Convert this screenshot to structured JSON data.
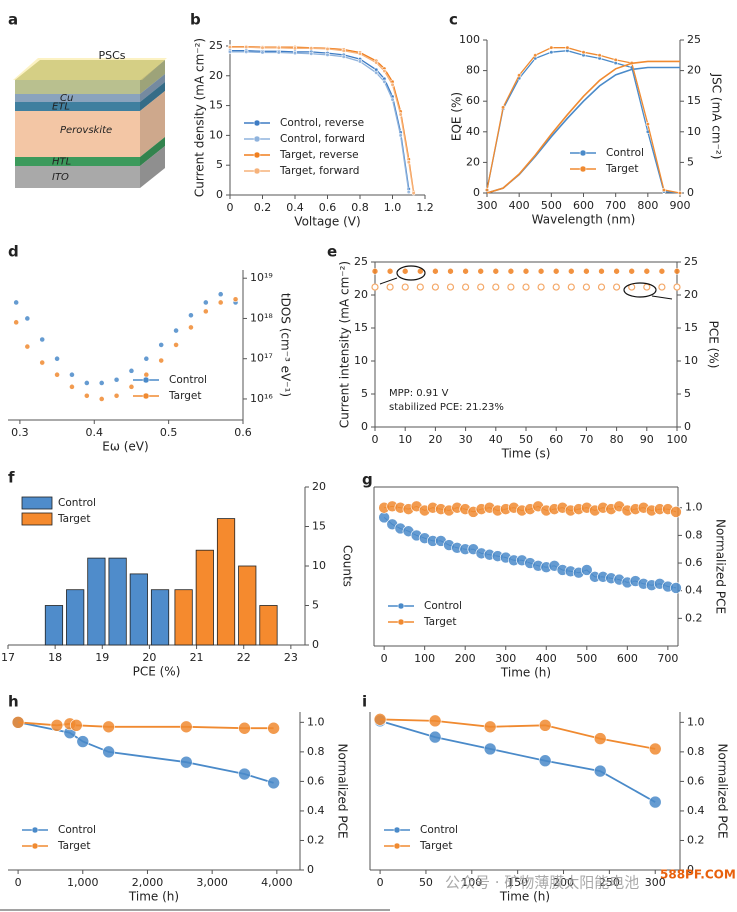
{
  "chart_data": [
    {
      "type": "diagram",
      "panel": "a",
      "title": "PSCs",
      "top_color": "#b9c08f",
      "layers": [
        {
          "label": "Cu",
          "color": "#8aa3bd"
        },
        {
          "label": "ETL",
          "color": "#3f7f9f"
        },
        {
          "label": "Perovskite",
          "color": "#f3c6a5"
        },
        {
          "label": "HTL",
          "color": "#3c9a5c"
        },
        {
          "label": "ITO",
          "color": "#a9a9a9"
        }
      ]
    },
    {
      "type": "line",
      "panel": "b",
      "xlabel": "Voltage (V)",
      "ylabel": "Current density (mA cm⁻²)",
      "legend": "lower left",
      "y_axis_side": "left",
      "x": [
        0,
        0.1,
        0.2,
        0.3,
        0.4,
        0.5,
        0.6,
        0.7,
        0.8,
        0.9,
        0.95,
        1.0,
        1.05,
        1.1,
        1.13
      ],
      "xlim": [
        0,
        1.2
      ],
      "xticks": [
        0,
        0.2,
        0.4,
        0.6,
        0.8,
        {
          "value": 1,
          "label": "1.0"
        },
        1.2
      ],
      "ylim": [
        0,
        26
      ],
      "yticks": [
        0,
        5,
        10,
        15,
        20,
        25
      ],
      "series": [
        {
          "name": "Control, reverse",
          "color": "#3e7cc4",
          "values": [
            24.2,
            24.2,
            24.1,
            24.1,
            24.0,
            24.0,
            23.8,
            23.5,
            22.8,
            21.0,
            19.5,
            16.5,
            10.5,
            1.0,
            null
          ]
        },
        {
          "name": "Control, forward",
          "color": "#8fb3dd",
          "values": [
            24.0,
            24.0,
            23.9,
            23.9,
            23.8,
            23.7,
            23.5,
            23.2,
            22.4,
            20.5,
            19.0,
            16.0,
            10.0,
            0.5,
            null
          ]
        },
        {
          "name": "Target, reverse",
          "color": "#f07f1f",
          "values": [
            24.9,
            24.9,
            24.8,
            24.8,
            24.8,
            24.7,
            24.6,
            24.4,
            23.9,
            22.5,
            21.2,
            19.0,
            14.0,
            6.0,
            0.5
          ]
        },
        {
          "name": "Target, forward",
          "color": "#f6b27a",
          "values": [
            24.8,
            24.8,
            24.7,
            24.7,
            24.6,
            24.6,
            24.5,
            24.2,
            23.7,
            22.2,
            20.8,
            18.5,
            13.5,
            5.5,
            0.3
          ]
        }
      ]
    },
    {
      "type": "line",
      "panel": "c",
      "xlabel": "Wavelength (nm)",
      "ylabel": "EQE (%)",
      "y2label": "JSC (mA cm⁻²)",
      "legend": "lower right",
      "y_axis_side": "left",
      "x": [
        300,
        350,
        400,
        450,
        500,
        550,
        600,
        650,
        700,
        750,
        800,
        850,
        900
      ],
      "xlim": [
        300,
        900
      ],
      "xticks": [
        300,
        400,
        500,
        600,
        700,
        800,
        900
      ],
      "ylim": [
        0,
        100
      ],
      "yticks": [
        0,
        20,
        40,
        60,
        80,
        100
      ],
      "y2lim": [
        0,
        25
      ],
      "y2ticks": [
        0,
        5,
        10,
        15,
        20,
        25
      ],
      "series": [
        {
          "name": "Control",
          "color": "#4a8ac9",
          "values": [
            2,
            55,
            75,
            88,
            92,
            93,
            90,
            88,
            85,
            82,
            40,
            1,
            0
          ],
          "y2_values": [
            0,
            0.8,
            3,
            6,
            9.2,
            12.2,
            15,
            17.5,
            19.3,
            20.2,
            20.5,
            20.5,
            20.5
          ]
        },
        {
          "name": "Target",
          "color": "#f08a30",
          "values": [
            2,
            56,
            77,
            90,
            95,
            95,
            92,
            90,
            87,
            85,
            45,
            2,
            0
          ],
          "y2_values": [
            0,
            0.8,
            3.1,
            6.2,
            9.6,
            12.8,
            15.8,
            18.4,
            20.3,
            21.2,
            21.5,
            21.5,
            21.5
          ]
        }
      ]
    },
    {
      "type": "scatter",
      "panel": "d",
      "xlabel": "Eω (eV)",
      "ylabel": "tDOS (cm⁻³ eV⁻¹)",
      "legend": "lower right",
      "y_axis_side": "right",
      "ylog": true,
      "x": [
        0.295,
        0.31,
        0.33,
        0.35,
        0.37,
        0.39,
        0.41,
        0.43,
        0.45,
        0.47,
        0.49,
        0.51,
        0.53,
        0.55,
        0.57,
        0.59
      ],
      "xlim": [
        0.284,
        0.6
      ],
      "xticks": [
        0.3,
        0.4,
        0.5,
        0.6
      ],
      "ylim": [
        3000000000000000.0,
        1.6e+19
      ],
      "yticks": [
        {
          "value": 1e+16,
          "label": "10¹⁶"
        },
        {
          "value": 1e+17,
          "label": "10¹⁷"
        },
        {
          "value": 1e+18,
          "label": "10¹⁸"
        },
        {
          "value": 1e+19,
          "label": "10¹⁹"
        }
      ],
      "series": [
        {
          "name": "Control",
          "color": "#4a8ac9",
          "values": [
            2.5e+18,
            1e+18,
            3e+17,
            1e+17,
            4e+16,
            2.5e+16,
            2.5e+16,
            3e+16,
            5e+16,
            1e+17,
            2.2e+17,
            5e+17,
            1.2e+18,
            2.5e+18,
            4e+18,
            2.5e+18
          ]
        },
        {
          "name": "Target",
          "color": "#f08a30",
          "values": [
            8e+17,
            2e+17,
            8e+16,
            4e+16,
            2e+16,
            1.2e+16,
            1e+16,
            1.2e+16,
            2e+16,
            4e+16,
            9e+16,
            2.2e+17,
            6e+17,
            1.5e+18,
            2.5e+18,
            3e+18
          ]
        }
      ]
    },
    {
      "type": "scatter",
      "panel": "e",
      "xlabel": "Time (s)",
      "ylabel": "Current intensity (mA cm⁻²)",
      "y2label": "PCE (%)",
      "y_axis_side": "left",
      "annotations": [
        "MPP: 0.91 V",
        "stabilized PCE: 21.23%"
      ],
      "x": [
        0,
        5,
        10,
        15,
        20,
        25,
        30,
        35,
        40,
        45,
        50,
        55,
        60,
        65,
        70,
        75,
        80,
        85,
        90,
        95,
        100
      ],
      "xlim": [
        0,
        100
      ],
      "xticks": [
        0,
        10,
        20,
        30,
        40,
        50,
        60,
        70,
        80,
        90,
        100
      ],
      "ylim": [
        0,
        25
      ],
      "yticks": [
        0,
        5,
        10,
        15,
        20,
        25
      ],
      "y2lim": [
        0,
        25
      ],
      "y2ticks": [
        0,
        5,
        10,
        15,
        20,
        25
      ],
      "series": [
        {
          "color": "#f07f1f",
          "values": [
            23.6,
            23.6,
            23.6,
            23.6,
            23.6,
            23.6,
            23.6,
            23.6,
            23.6,
            23.6,
            23.6,
            23.6,
            23.6,
            23.6,
            23.6,
            23.6,
            23.6,
            23.6,
            23.6,
            23.6,
            23.6
          ]
        },
        {
          "color": "#f4a868",
          "axis": "y2",
          "values": [
            21.2,
            21.2,
            21.2,
            21.2,
            21.2,
            21.2,
            21.2,
            21.2,
            21.2,
            21.2,
            21.2,
            21.2,
            21.2,
            21.2,
            21.2,
            21.2,
            21.2,
            21.2,
            21.2,
            21.2,
            21.2
          ]
        }
      ]
    },
    {
      "type": "histogram",
      "panel": "f",
      "xlabel": "PCE (%)",
      "ylabel": "Counts",
      "legend": "upper left",
      "y_axis_side": "right",
      "xlim": [
        17,
        23.3
      ],
      "xticks": [
        17,
        18,
        19,
        20,
        21,
        22,
        23
      ],
      "ylim": [
        0,
        20
      ],
      "yticks": [
        0,
        5,
        10,
        15,
        20
      ],
      "series": [
        {
          "name": "Control",
          "color": "#4f8ccb",
          "bins": [
            17.75,
            18.2,
            18.65,
            19.1,
            19.55,
            20.0,
            20.45
          ],
          "values": [
            5,
            7,
            11,
            11,
            9,
            7
          ]
        },
        {
          "name": "Target",
          "color": "#f58a2e",
          "bins": [
            20.5,
            20.95,
            21.4,
            21.85,
            22.3,
            22.75
          ],
          "values": [
            7,
            12,
            16,
            10,
            5
          ]
        }
      ]
    },
    {
      "type": "line",
      "panel": "g",
      "xlabel": "Time (h)",
      "ylabel": "Normalized PCE",
      "legend": "lower left",
      "y_axis_side": "right",
      "x": [
        0,
        20,
        40,
        60,
        80,
        100,
        120,
        140,
        160,
        180,
        200,
        220,
        240,
        260,
        280,
        300,
        320,
        340,
        360,
        380,
        400,
        420,
        440,
        460,
        480,
        500,
        520,
        540,
        560,
        580,
        600,
        620,
        640,
        660,
        680,
        700,
        720
      ],
      "xlim": [
        -25,
        725
      ],
      "xticks": [
        0,
        100,
        200,
        300,
        400,
        500,
        600,
        700
      ],
      "ylim": [
        0,
        1.15
      ],
      "yticks": [
        0.2,
        0.4,
        0.6,
        0.8,
        {
          "value": 1,
          "label": "1.0"
        }
      ],
      "series": [
        {
          "name": "Control",
          "color": "#4a8ac9",
          "values": [
            0.93,
            0.88,
            0.85,
            0.83,
            0.8,
            0.78,
            0.76,
            0.76,
            0.73,
            0.71,
            0.7,
            0.7,
            0.67,
            0.66,
            0.65,
            0.64,
            0.62,
            0.62,
            0.6,
            0.58,
            0.57,
            0.58,
            0.55,
            0.54,
            0.53,
            0.55,
            0.5,
            0.5,
            0.49,
            0.48,
            0.46,
            0.47,
            0.45,
            0.44,
            0.45,
            0.43,
            0.42
          ]
        },
        {
          "name": "Target",
          "color": "#f08a30",
          "values": [
            1.0,
            1.01,
            1.0,
            0.99,
            1.01,
            0.98,
            1.0,
            0.99,
            0.98,
            1.0,
            0.99,
            0.97,
            0.99,
            1.0,
            0.98,
            0.99,
            1.0,
            0.98,
            0.99,
            1.01,
            0.98,
            0.99,
            1.0,
            0.98,
            0.99,
            1.0,
            0.98,
            1.0,
            0.99,
            1.01,
            0.98,
            0.99,
            1.0,
            0.98,
            0.99,
            0.99,
            0.97
          ]
        }
      ]
    },
    {
      "type": "line",
      "panel": "h",
      "xlabel": "Time (h)",
      "ylabel": "Normalized PCE",
      "legend": "lower left",
      "y_axis_side": "right",
      "xlim": [
        -156,
        4358
      ],
      "xticks": [
        0,
        {
          "value": 1000,
          "label": "1,000"
        },
        {
          "value": 2000,
          "label": "2,000"
        },
        {
          "value": 3000,
          "label": "3,000"
        },
        {
          "value": 4000,
          "label": "4,000"
        }
      ],
      "ylim": [
        0,
        1.07
      ],
      "yticks": [
        0,
        0.2,
        0.4,
        0.6,
        0.8,
        {
          "value": 1,
          "label": "1.0"
        }
      ],
      "series": [
        {
          "name": "Control",
          "color": "#4a8ac9",
          "x": [
            0,
            800,
            1000,
            1400,
            2600,
            3500,
            3950
          ],
          "values": [
            1.0,
            0.93,
            0.87,
            0.8,
            0.73,
            0.65,
            0.59
          ]
        },
        {
          "name": "Target",
          "color": "#f08a30",
          "x": [
            0,
            600,
            800,
            900,
            1400,
            2600,
            3500,
            3950
          ],
          "values": [
            1.0,
            0.98,
            0.99,
            0.98,
            0.97,
            0.97,
            0.96,
            0.96
          ]
        }
      ]
    },
    {
      "type": "line",
      "panel": "i",
      "xlabel": "Time (h)",
      "ylabel": "Normalized PCE",
      "legend": "lower left",
      "y_axis_side": "right",
      "x": [
        0,
        60,
        120,
        180,
        240,
        300
      ],
      "xlim": [
        -11,
        327
      ],
      "xticks": [
        0,
        50,
        100,
        150,
        200,
        250,
        300
      ],
      "ylim": [
        0,
        1.07
      ],
      "yticks": [
        0,
        0.2,
        0.4,
        0.6,
        0.8,
        {
          "value": 1,
          "label": "1.0"
        }
      ],
      "series": [
        {
          "name": "Control",
          "color": "#4a8ac9",
          "values": [
            1.01,
            0.9,
            0.82,
            0.74,
            0.67,
            0.46
          ]
        },
        {
          "name": "Target",
          "color": "#f08a30",
          "values": [
            1.02,
            1.01,
            0.97,
            0.98,
            0.89,
            0.82
          ]
        }
      ]
    }
  ],
  "watermark": {
    "text": "公众号 · 矿物薄膜太阳能电池",
    "site": "588PF.COM"
  }
}
